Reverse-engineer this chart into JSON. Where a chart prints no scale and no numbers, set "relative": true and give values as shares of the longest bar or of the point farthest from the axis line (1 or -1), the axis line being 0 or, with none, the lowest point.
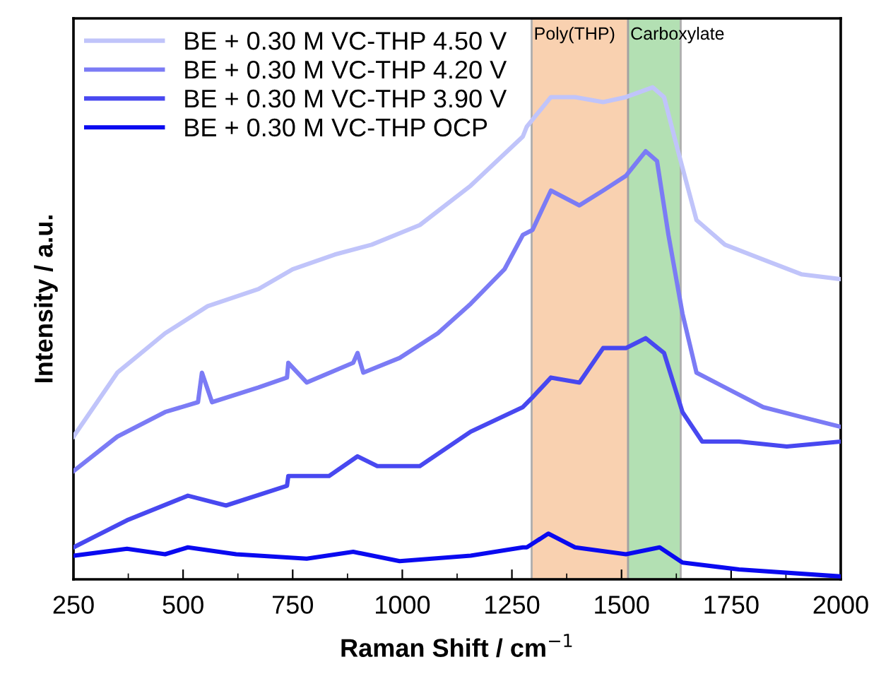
{
  "chart_data": {
    "type": "line",
    "relative": true,
    "xlabel": "Raman Shift / cm$^{−1}$",
    "ylabel": "Intensity / a.u.",
    "xlim": [
      250,
      2000
    ],
    "xticks": [
      250,
      500,
      750,
      1000,
      1250,
      1500,
      1750,
      2000
    ],
    "legend": "top left",
    "grid": false,
    "line_style": "solid",
    "marker": "none",
    "bands": [
      {
        "axis": "x",
        "from": 1295,
        "to": 1515,
        "label": "Poly(THP)",
        "color": "#f9c9a3"
      },
      {
        "axis": "x",
        "from": 1515,
        "to": 1635,
        "label": "Carboxylate",
        "color": "#a6dba6"
      }
    ],
    "series": [
      {
        "name": "BE + 0.30 M VC-THP 4.50 V",
        "color": "#c0c4fa",
        "x": [
          250,
          350,
          459,
          556,
          672,
          750,
          846,
          930,
          1040,
          1156,
          1275,
          1284,
          1339,
          1394,
          1458,
          1510,
          1571,
          1597,
          1629,
          1671,
          1736,
          1823,
          1910,
          2000
        ],
        "values": [
          0.29,
          0.42,
          0.5,
          0.555,
          0.59,
          0.63,
          0.66,
          0.68,
          0.72,
          0.8,
          0.9,
          0.92,
          0.98,
          0.98,
          0.97,
          0.98,
          1.0,
          0.98,
          0.87,
          0.73,
          0.68,
          0.65,
          0.62,
          0.61
        ]
      },
      {
        "name": "BE + 0.30 M VC-THP 4.20 V",
        "color": "#7b7bf5",
        "x": [
          250,
          350,
          459,
          534,
          543,
          566,
          672,
          737,
          740,
          782,
          888,
          898,
          911,
          994,
          1081,
          1156,
          1233,
          1275,
          1297,
          1339,
          1404,
          1458,
          1510,
          1555,
          1581,
          1607,
          1639,
          1671,
          1736,
          1823,
          1910,
          2000
        ],
        "values": [
          0.22,
          0.29,
          0.34,
          0.36,
          0.42,
          0.36,
          0.39,
          0.41,
          0.44,
          0.4,
          0.44,
          0.46,
          0.42,
          0.45,
          0.5,
          0.56,
          0.63,
          0.7,
          0.71,
          0.79,
          0.76,
          0.79,
          0.82,
          0.87,
          0.85,
          0.7,
          0.54,
          0.42,
          0.39,
          0.35,
          0.33,
          0.31
        ]
      },
      {
        "name": "BE + 0.30 M VC-THP 3.90 V",
        "color": "#4848f0",
        "x": [
          250,
          372,
          511,
          598,
          737,
          740,
          833,
          898,
          943,
          1040,
          1156,
          1275,
          1297,
          1339,
          1404,
          1458,
          1510,
          1555,
          1597,
          1639,
          1684,
          1768,
          1877,
          2000
        ],
        "values": [
          0.065,
          0.12,
          0.17,
          0.15,
          0.19,
          0.21,
          0.21,
          0.25,
          0.23,
          0.23,
          0.3,
          0.35,
          0.37,
          0.41,
          0.4,
          0.47,
          0.47,
          0.49,
          0.46,
          0.34,
          0.28,
          0.28,
          0.27,
          0.28
        ]
      },
      {
        "name": "BE + 0.30 M VC-THP OCP",
        "color": "#0a0af0",
        "x": [
          250,
          372,
          459,
          511,
          621,
          782,
          888,
          994,
          1156,
          1275,
          1284,
          1333,
          1394,
          1510,
          1587,
          1639,
          1768,
          2000
        ],
        "values": [
          0.048,
          0.062,
          0.051,
          0.065,
          0.051,
          0.042,
          0.056,
          0.037,
          0.048,
          0.065,
          0.065,
          0.093,
          0.065,
          0.051,
          0.065,
          0.034,
          0.02,
          0.006
        ]
      }
    ]
  }
}
